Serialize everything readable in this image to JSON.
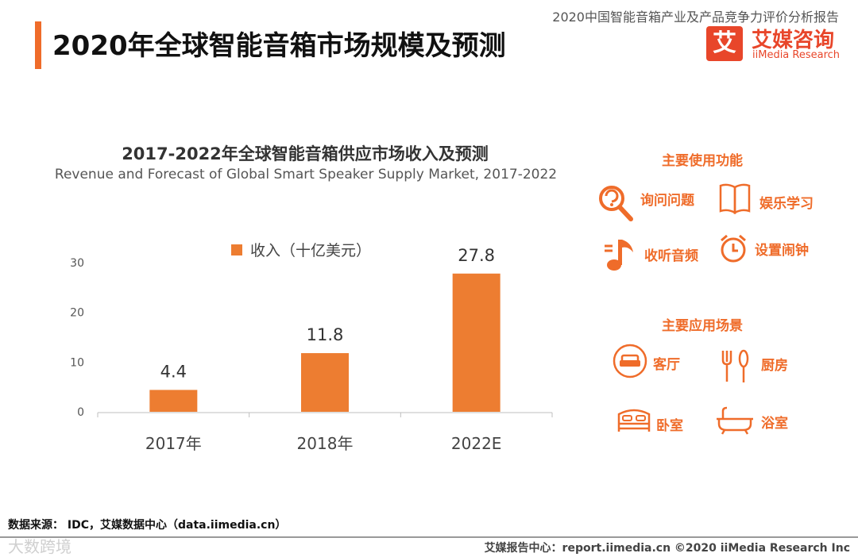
{
  "header": {
    "page_title": "2020年全球智能音箱市场规模及预测",
    "report_title": "2020中国智能音箱产业及产品竞争力评价分析报告",
    "logo_mark": "艾",
    "logo_name": "艾媒咨询",
    "logo_en": "iiMedia Research"
  },
  "chart_data": {
    "type": "bar",
    "title": "2017-2022年全球智能音箱供应市场收入及预测",
    "subtitle": "Revenue and Forecast of Global Smart Speaker Supply Market, 2017-2022",
    "categories": [
      "2017年",
      "2018年",
      "2022E"
    ],
    "series": [
      {
        "name": "收入（十亿美元）",
        "values": [
          4.4,
          11.8,
          27.8
        ]
      }
    ],
    "data_labels": [
      "4.4",
      "11.8",
      "27.8"
    ],
    "ylim": [
      0,
      30
    ],
    "yticks": [
      0,
      10,
      20,
      30
    ],
    "xlabel": "",
    "ylabel": "",
    "legend_position": "top",
    "grid": false,
    "bar_color": "#ed7d31"
  },
  "sidebar": {
    "functions_title": "主要使用功能",
    "functions": [
      {
        "label": "询问问题",
        "icon": "search-question-icon"
      },
      {
        "label": "娱乐学习",
        "icon": "book-icon"
      },
      {
        "label": "收听音频",
        "icon": "music-note-icon"
      },
      {
        "label": "设置闹钟",
        "icon": "alarm-clock-icon"
      }
    ],
    "scenes_title": "主要应用场景",
    "scenes": [
      {
        "label": "客厅",
        "icon": "sofa-icon"
      },
      {
        "label": "厨房",
        "icon": "fork-spoon-icon"
      },
      {
        "label": "卧室",
        "icon": "bed-icon"
      },
      {
        "label": "浴室",
        "icon": "bathtub-icon"
      }
    ]
  },
  "footer": {
    "source": "数据来源： IDC，艾媒数据中心（data.iimedia.cn）",
    "site": "艾媒报告中心：report.iimedia.cn  ©2020  iiMedia Research  Inc",
    "watermark": "大数跨境"
  },
  "colors": {
    "accent": "#ef6c2a",
    "bar": "#ed7d31",
    "logo": "#e8462a"
  }
}
